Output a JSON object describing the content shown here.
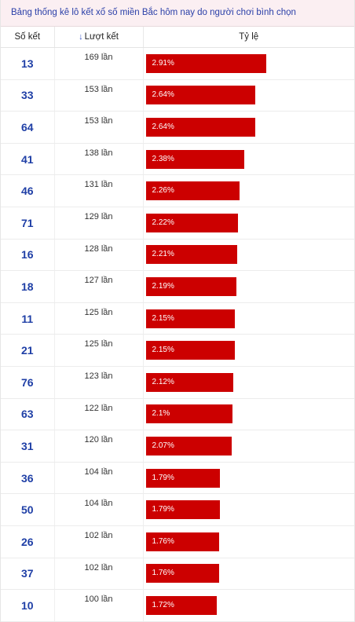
{
  "title": "Bảng thống kê lô kết xổ số miền Bắc hôm nay do người chơi bình chọn",
  "headers": {
    "number": "Số kết",
    "count": "Lượt kết",
    "ratio": "Tỷ lệ"
  },
  "bar_color": "#cc0000",
  "rows": [
    {
      "number": "13",
      "count": "169 lần",
      "ratio": "2.91%",
      "pct": 2.91
    },
    {
      "number": "33",
      "count": "153 lần",
      "ratio": "2.64%",
      "pct": 2.64
    },
    {
      "number": "64",
      "count": "153 lần",
      "ratio": "2.64%",
      "pct": 2.64
    },
    {
      "number": "41",
      "count": "138 lần",
      "ratio": "2.38%",
      "pct": 2.38
    },
    {
      "number": "46",
      "count": "131 lần",
      "ratio": "2.26%",
      "pct": 2.26
    },
    {
      "number": "71",
      "count": "129 lần",
      "ratio": "2.22%",
      "pct": 2.22
    },
    {
      "number": "16",
      "count": "128 lần",
      "ratio": "2.21%",
      "pct": 2.21
    },
    {
      "number": "18",
      "count": "127 lần",
      "ratio": "2.19%",
      "pct": 2.19
    },
    {
      "number": "11",
      "count": "125 lần",
      "ratio": "2.15%",
      "pct": 2.15
    },
    {
      "number": "21",
      "count": "125 lần",
      "ratio": "2.15%",
      "pct": 2.15
    },
    {
      "number": "76",
      "count": "123 lần",
      "ratio": "2.12%",
      "pct": 2.12
    },
    {
      "number": "63",
      "count": "122 lần",
      "ratio": "2.1%",
      "pct": 2.1
    },
    {
      "number": "31",
      "count": "120 lần",
      "ratio": "2.07%",
      "pct": 2.07
    },
    {
      "number": "36",
      "count": "104 lần",
      "ratio": "1.79%",
      "pct": 1.79
    },
    {
      "number": "50",
      "count": "104 lần",
      "ratio": "1.79%",
      "pct": 1.79
    },
    {
      "number": "26",
      "count": "102 lần",
      "ratio": "1.76%",
      "pct": 1.76
    },
    {
      "number": "37",
      "count": "102 lần",
      "ratio": "1.76%",
      "pct": 1.76
    },
    {
      "number": "10",
      "count": "100 lần",
      "ratio": "1.72%",
      "pct": 1.72
    }
  ]
}
